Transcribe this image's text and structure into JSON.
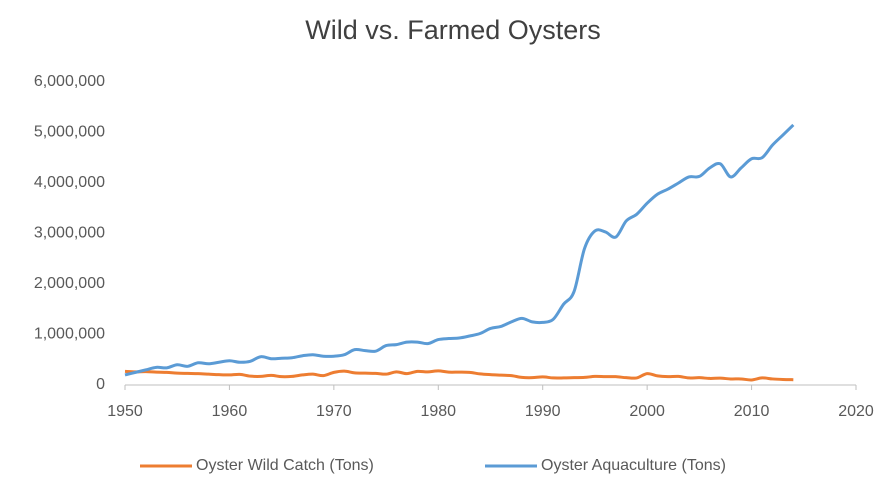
{
  "chart_data": {
    "type": "line",
    "title": "Wild vs. Farmed Oysters",
    "x": [
      1950,
      1951,
      1952,
      1953,
      1954,
      1955,
      1956,
      1957,
      1958,
      1959,
      1960,
      1961,
      1962,
      1963,
      1964,
      1965,
      1966,
      1967,
      1968,
      1969,
      1970,
      1971,
      1972,
      1973,
      1974,
      1975,
      1976,
      1977,
      1978,
      1979,
      1980,
      1981,
      1982,
      1983,
      1984,
      1985,
      1986,
      1987,
      1988,
      1989,
      1990,
      1991,
      1992,
      1993,
      1994,
      1995,
      1996,
      1997,
      1998,
      1999,
      2000,
      2001,
      2002,
      2003,
      2004,
      2005,
      2006,
      2007,
      2008,
      2009,
      2010,
      2011,
      2012,
      2013,
      2014
    ],
    "series": [
      {
        "name": "Oyster Wild Catch (Tons)",
        "color": "#ed7d31",
        "values": [
          270000,
          260000,
          265000,
          255000,
          250000,
          235000,
          230000,
          225000,
          215000,
          205000,
          200000,
          210000,
          175000,
          170000,
          190000,
          165000,
          170000,
          200000,
          215000,
          185000,
          250000,
          275000,
          240000,
          235000,
          230000,
          215000,
          260000,
          225000,
          270000,
          260000,
          280000,
          255000,
          255000,
          250000,
          220000,
          205000,
          195000,
          185000,
          150000,
          145000,
          160000,
          140000,
          140000,
          145000,
          150000,
          170000,
          165000,
          165000,
          145000,
          140000,
          225000,
          180000,
          165000,
          170000,
          140000,
          145000,
          130000,
          135000,
          120000,
          120000,
          100000,
          140000,
          120000,
          110000,
          105000
        ]
      },
      {
        "name": "Oyster Aquaculture (Tons)",
        "color": "#5b9bd5",
        "values": [
          200000,
          250000,
          300000,
          350000,
          340000,
          400000,
          370000,
          440000,
          420000,
          450000,
          480000,
          450000,
          470000,
          560000,
          520000,
          530000,
          540000,
          580000,
          600000,
          570000,
          570000,
          600000,
          700000,
          680000,
          670000,
          780000,
          800000,
          850000,
          850000,
          820000,
          900000,
          920000,
          930000,
          970000,
          1020000,
          1120000,
          1160000,
          1250000,
          1320000,
          1250000,
          1240000,
          1300000,
          1600000,
          1850000,
          2700000,
          3050000,
          3030000,
          2930000,
          3250000,
          3380000,
          3600000,
          3780000,
          3880000,
          4000000,
          4120000,
          4130000,
          4300000,
          4380000,
          4120000,
          4300000,
          4480000,
          4500000,
          4750000,
          4950000,
          5150000
        ]
      }
    ],
    "xlim": [
      1950,
      2020
    ],
    "xticks": [
      1950,
      1960,
      1970,
      1980,
      1990,
      2000,
      2010,
      2020
    ],
    "ylim": [
      0,
      6000000
    ],
    "yticks": [
      0,
      {
        "value": 1000000,
        "label": "1,000,000"
      },
      {
        "value": 2000000,
        "label": "2,000,000"
      },
      {
        "value": 3000000,
        "label": "3,000,000"
      },
      {
        "value": 4000000,
        "label": "4,000,000"
      },
      {
        "value": 5000000,
        "label": "5,000,000"
      },
      {
        "value": 6000000,
        "label": "6,000,000"
      }
    ],
    "grid": false,
    "legend": "bottom"
  }
}
